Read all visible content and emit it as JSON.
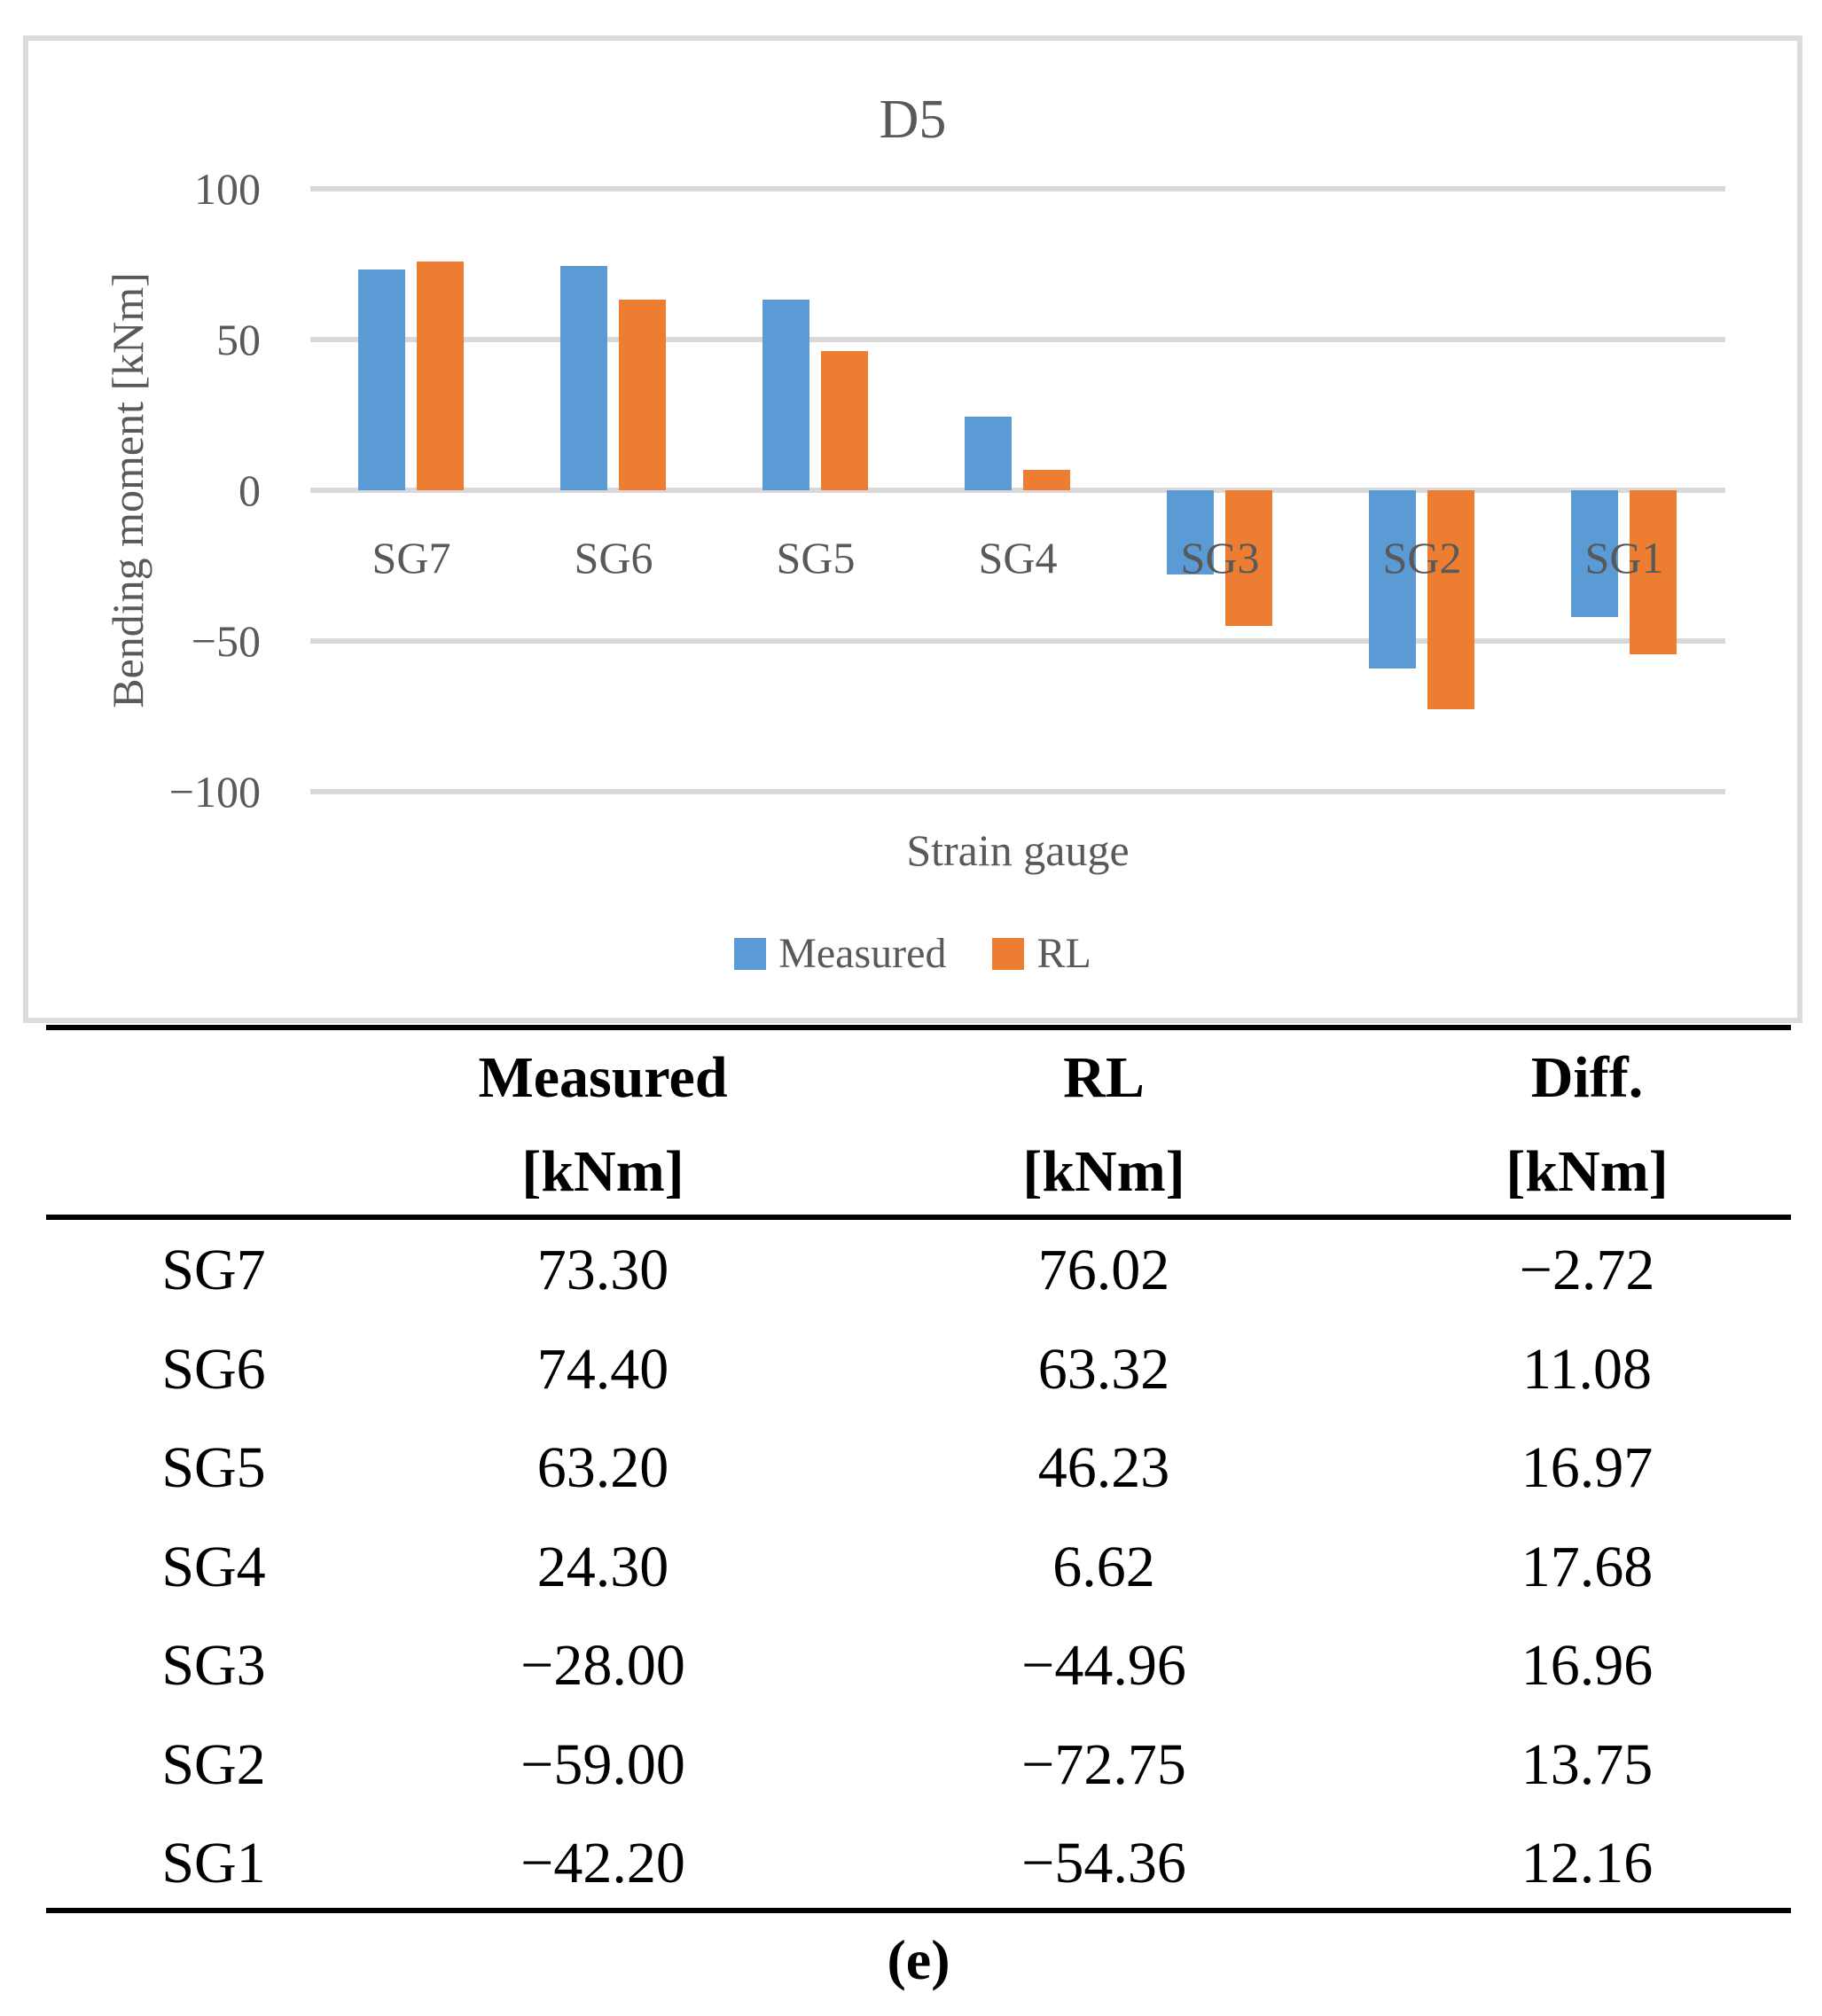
{
  "chart": {
    "title": "D5",
    "y_axis_label": "Bending moment [kNm]",
    "x_axis_label": "Strain gauge",
    "colors": {
      "measured": "#5B9BD5",
      "rl": "#ED7D31",
      "gridline": "#D9D9D9",
      "axis_text": "#595959"
    },
    "legend": [
      {
        "label": "Measured",
        "color": "#5B9BD5"
      },
      {
        "label": "RL",
        "color": "#ED7D31"
      }
    ]
  },
  "chart_data": {
    "type": "bar",
    "title": "D5",
    "xlabel": "Strain gauge",
    "ylabel": "Bending moment [kNm]",
    "categories": [
      "SG7",
      "SG6",
      "SG5",
      "SG4",
      "SG3",
      "SG2",
      "SG1"
    ],
    "series": [
      {
        "name": "Measured",
        "color": "#5B9BD5",
        "values": [
          73.3,
          74.4,
          63.2,
          24.3,
          -28.0,
          -59.0,
          -42.2
        ]
      },
      {
        "name": "RL",
        "color": "#ED7D31",
        "values": [
          76.02,
          63.32,
          46.23,
          6.62,
          -44.96,
          -72.75,
          -54.36
        ]
      }
    ],
    "ylim": [
      -100,
      100
    ],
    "gridlines": [
      100,
      50,
      0,
      -50,
      -100
    ],
    "grid": true,
    "legend_position": "bottom"
  },
  "table": {
    "headers": [
      {
        "line1": "",
        "line2": ""
      },
      {
        "line1": "Measured",
        "line2": "[kNm]"
      },
      {
        "line1": "RL",
        "line2": "[kNm]"
      },
      {
        "line1": "Diff.",
        "line2": "[kNm]"
      }
    ],
    "rows": [
      {
        "label": "SG7",
        "measured": "73.30",
        "rl": "76.02",
        "diff": "−2.72"
      },
      {
        "label": "SG6",
        "measured": "74.40",
        "rl": "63.32",
        "diff": "11.08"
      },
      {
        "label": "SG5",
        "measured": "63.20",
        "rl": "46.23",
        "diff": "16.97"
      },
      {
        "label": "SG4",
        "measured": "24.30",
        "rl": "6.62",
        "diff": "17.68"
      },
      {
        "label": "SG3",
        "measured": "−28.00",
        "rl": "−44.96",
        "diff": "16.96"
      },
      {
        "label": "SG2",
        "measured": "−59.00",
        "rl": "−72.75",
        "diff": "13.75"
      },
      {
        "label": "SG1",
        "measured": "−42.20",
        "rl": "−54.36",
        "diff": "12.16"
      }
    ]
  },
  "caption": "(e)"
}
